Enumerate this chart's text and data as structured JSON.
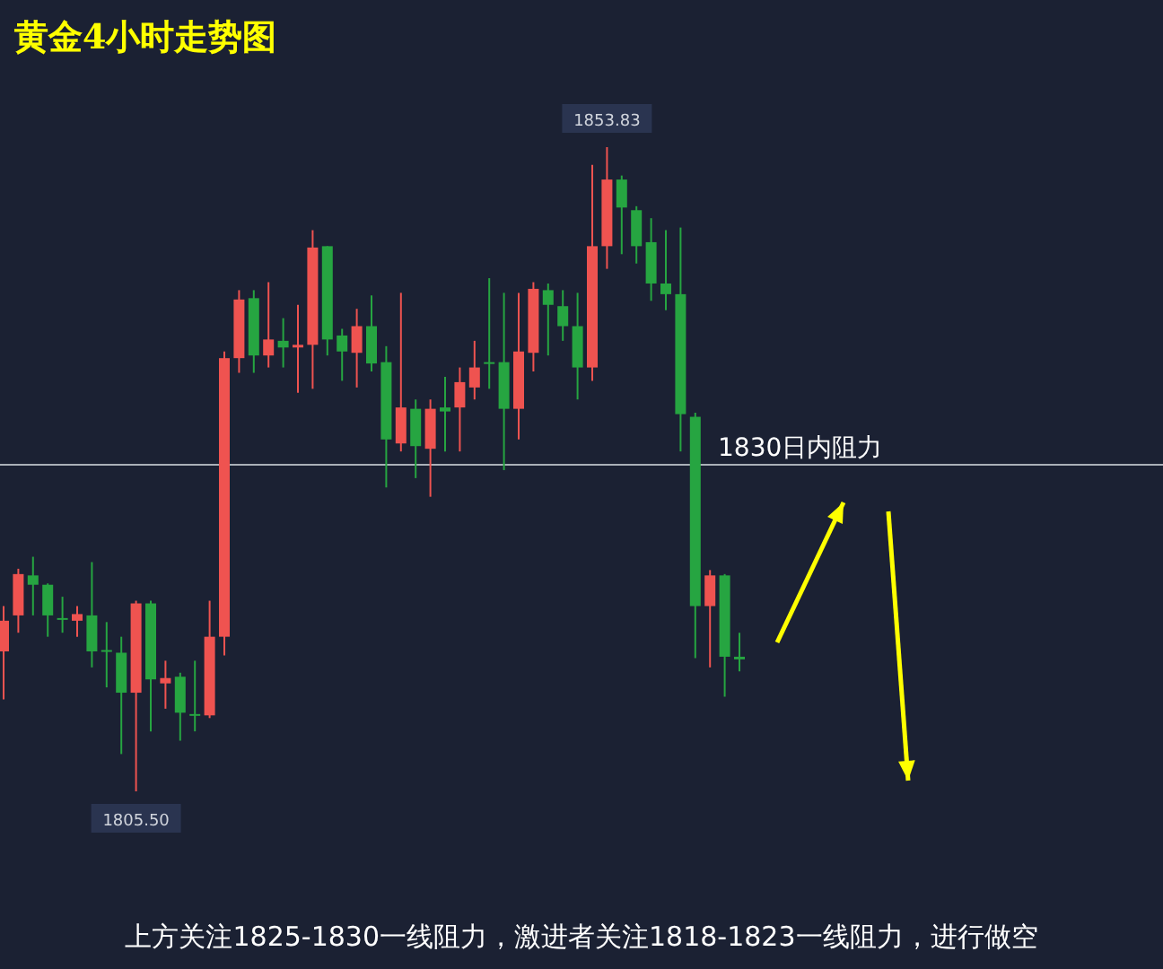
{
  "chart_data": {
    "type": "candlestick",
    "title": "黄金4小时走势图",
    "categories": [
      null,
      null,
      null,
      null,
      null,
      null,
      null,
      null,
      null,
      null,
      null,
      null,
      null,
      null,
      null,
      null,
      null,
      null,
      null,
      null,
      null,
      null,
      null,
      null,
      null,
      null,
      null,
      null,
      null,
      null,
      null,
      null,
      null,
      null,
      null,
      null,
      null,
      null,
      null,
      null,
      null,
      null,
      null,
      null,
      null,
      null,
      null,
      null,
      null,
      null,
      null
    ],
    "ohlc": [
      [
        1816.0,
        1819.4,
        1812.4,
        1818.3
      ],
      [
        1818.7,
        1822.2,
        1817.4,
        1821.8
      ],
      [
        1821.7,
        1823.1,
        1818.7,
        1821.0
      ],
      [
        1821.0,
        1821.1,
        1817.1,
        1818.7
      ],
      [
        1818.5,
        1820.1,
        1817.4,
        1818.4
      ],
      [
        1818.3,
        1819.4,
        1817.1,
        1818.8
      ],
      [
        1818.7,
        1822.7,
        1814.8,
        1816.0
      ],
      [
        1816.1,
        1818.2,
        1813.3,
        1816.0
      ],
      [
        1815.9,
        1817.1,
        1808.3,
        1812.9
      ],
      [
        1812.9,
        1819.8,
        1805.5,
        1819.6
      ],
      [
        1819.6,
        1819.8,
        1810.0,
        1813.9
      ],
      [
        1813.6,
        1815.3,
        1811.7,
        1814.0
      ],
      [
        1814.1,
        1814.4,
        1809.3,
        1811.4
      ],
      [
        1811.3,
        1815.3,
        1810.0,
        1811.2
      ],
      [
        1811.2,
        1819.8,
        1811.0,
        1817.1
      ],
      [
        1817.1,
        1838.5,
        1815.7,
        1838.0
      ],
      [
        1838.0,
        1843.1,
        1836.9,
        1842.4
      ],
      [
        1842.5,
        1843.1,
        1836.9,
        1838.2
      ],
      [
        1838.2,
        1843.7,
        1837.3,
        1839.4
      ],
      [
        1839.3,
        1841.0,
        1837.3,
        1838.8
      ],
      [
        1838.8,
        1842.0,
        1835.4,
        1839.0
      ],
      [
        1839.0,
        1847.6,
        1835.7,
        1846.3
      ],
      [
        1846.4,
        1846.4,
        1838.2,
        1839.4
      ],
      [
        1839.7,
        1840.2,
        1836.3,
        1838.5
      ],
      [
        1838.4,
        1841.7,
        1835.8,
        1840.4
      ],
      [
        1840.4,
        1842.7,
        1837.0,
        1837.6
      ],
      [
        1837.7,
        1838.9,
        1828.3,
        1831.9
      ],
      [
        1831.6,
        1842.9,
        1831.0,
        1834.3
      ],
      [
        1834.2,
        1834.9,
        1829.0,
        1831.4
      ],
      [
        1831.2,
        1834.9,
        1827.6,
        1834.2
      ],
      [
        1834.3,
        1836.6,
        1831.0,
        1834.0
      ],
      [
        1834.3,
        1837.3,
        1831.0,
        1836.2
      ],
      [
        1835.8,
        1839.3,
        1834.9,
        1837.3
      ],
      [
        1837.6,
        1844.0,
        1835.7,
        1837.7
      ],
      [
        1837.7,
        1842.9,
        1829.6,
        1834.2
      ],
      [
        1834.2,
        1842.9,
        1831.9,
        1838.5
      ],
      [
        1838.4,
        1843.7,
        1837.0,
        1843.2
      ],
      [
        1843.1,
        1843.6,
        1838.2,
        1842.0
      ],
      [
        1841.9,
        1843.1,
        1839.3,
        1840.4
      ],
      [
        1840.4,
        1842.9,
        1834.9,
        1837.3
      ],
      [
        1837.3,
        1852.5,
        1836.3,
        1846.4
      ],
      [
        1846.4,
        1853.83,
        1844.7,
        1851.4
      ],
      [
        1851.4,
        1851.7,
        1845.8,
        1849.3
      ],
      [
        1849.1,
        1849.4,
        1845.1,
        1846.4
      ],
      [
        1846.7,
        1848.5,
        1842.3,
        1843.6
      ],
      [
        1843.6,
        1847.6,
        1841.6,
        1842.8
      ],
      [
        1842.8,
        1847.8,
        1831.0,
        1833.8
      ],
      [
        1833.6,
        1833.9,
        1815.5,
        1819.4
      ],
      [
        1819.4,
        1822.1,
        1814.8,
        1821.7
      ],
      [
        1821.7,
        1821.8,
        1812.6,
        1815.6
      ],
      [
        1815.6,
        1817.4,
        1814.5,
        1815.4
      ]
    ],
    "colors": [
      "#ef5350",
      "#ef5350",
      "#26a541",
      "#26a541",
      "#26a541",
      "#ef5350",
      "#26a541",
      "#26a541",
      "#26a541",
      "#ef5350",
      "#26a541",
      "#ef5350",
      "#26a541",
      "#26a541",
      "#ef5350",
      "#ef5350",
      "#ef5350",
      "#26a541",
      "#ef5350",
      "#26a541",
      "#ef5350",
      "#ef5350",
      "#26a541",
      "#26a541",
      "#ef5350",
      "#26a541",
      "#26a541",
      "#ef5350",
      "#26a541",
      "#ef5350",
      "#26a541",
      "#ef5350",
      "#ef5350",
      "#26a541",
      "#26a541",
      "#ef5350",
      "#ef5350",
      "#26a541",
      "#26a541",
      "#26a541",
      "#ef5350",
      "#ef5350",
      "#26a541",
      "#26a541",
      "#26a541",
      "#26a541",
      "#26a541",
      "#26a541",
      "#ef5350",
      "#26a541",
      "#26a541"
    ],
    "ref_lines": [
      {
        "axis": "y",
        "value": 1830,
        "label": "1830日内阻力",
        "color": "#aab0b8"
      }
    ],
    "annotations": [
      {
        "text": "1853.83",
        "y": 1853.83
      },
      {
        "text": "1805.50",
        "y": 1805.5
      },
      "上方关注1825-1830一线阻力，激进者关注1818-1823一线阻力，进行做空"
    ]
  }
}
